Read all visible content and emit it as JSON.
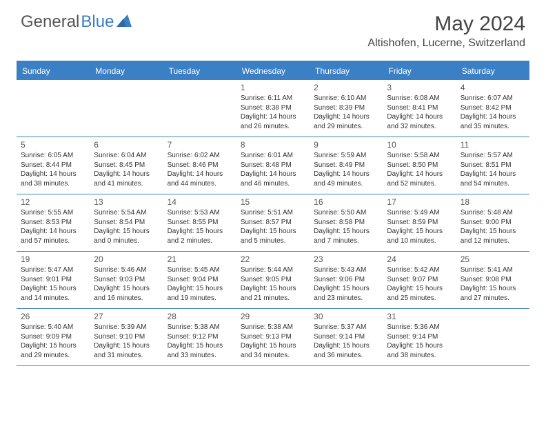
{
  "logo": {
    "part1": "General",
    "part2": "Blue"
  },
  "title": "May 2024",
  "location": "Altishofen, Lucerne, Switzerland",
  "header_bg": "#3b7fc4",
  "day_names": [
    "Sunday",
    "Monday",
    "Tuesday",
    "Wednesday",
    "Thursday",
    "Friday",
    "Saturday"
  ],
  "weeks": [
    [
      null,
      null,
      null,
      {
        "d": "1",
        "sr": "6:11 AM",
        "ss": "8:38 PM",
        "dl": "14 hours and 26 minutes."
      },
      {
        "d": "2",
        "sr": "6:10 AM",
        "ss": "8:39 PM",
        "dl": "14 hours and 29 minutes."
      },
      {
        "d": "3",
        "sr": "6:08 AM",
        "ss": "8:41 PM",
        "dl": "14 hours and 32 minutes."
      },
      {
        "d": "4",
        "sr": "6:07 AM",
        "ss": "8:42 PM",
        "dl": "14 hours and 35 minutes."
      }
    ],
    [
      {
        "d": "5",
        "sr": "6:05 AM",
        "ss": "8:44 PM",
        "dl": "14 hours and 38 minutes."
      },
      {
        "d": "6",
        "sr": "6:04 AM",
        "ss": "8:45 PM",
        "dl": "14 hours and 41 minutes."
      },
      {
        "d": "7",
        "sr": "6:02 AM",
        "ss": "8:46 PM",
        "dl": "14 hours and 44 minutes."
      },
      {
        "d": "8",
        "sr": "6:01 AM",
        "ss": "8:48 PM",
        "dl": "14 hours and 46 minutes."
      },
      {
        "d": "9",
        "sr": "5:59 AM",
        "ss": "8:49 PM",
        "dl": "14 hours and 49 minutes."
      },
      {
        "d": "10",
        "sr": "5:58 AM",
        "ss": "8:50 PM",
        "dl": "14 hours and 52 minutes."
      },
      {
        "d": "11",
        "sr": "5:57 AM",
        "ss": "8:51 PM",
        "dl": "14 hours and 54 minutes."
      }
    ],
    [
      {
        "d": "12",
        "sr": "5:55 AM",
        "ss": "8:53 PM",
        "dl": "14 hours and 57 minutes."
      },
      {
        "d": "13",
        "sr": "5:54 AM",
        "ss": "8:54 PM",
        "dl": "15 hours and 0 minutes."
      },
      {
        "d": "14",
        "sr": "5:53 AM",
        "ss": "8:55 PM",
        "dl": "15 hours and 2 minutes."
      },
      {
        "d": "15",
        "sr": "5:51 AM",
        "ss": "8:57 PM",
        "dl": "15 hours and 5 minutes."
      },
      {
        "d": "16",
        "sr": "5:50 AM",
        "ss": "8:58 PM",
        "dl": "15 hours and 7 minutes."
      },
      {
        "d": "17",
        "sr": "5:49 AM",
        "ss": "8:59 PM",
        "dl": "15 hours and 10 minutes."
      },
      {
        "d": "18",
        "sr": "5:48 AM",
        "ss": "9:00 PM",
        "dl": "15 hours and 12 minutes."
      }
    ],
    [
      {
        "d": "19",
        "sr": "5:47 AM",
        "ss": "9:01 PM",
        "dl": "15 hours and 14 minutes."
      },
      {
        "d": "20",
        "sr": "5:46 AM",
        "ss": "9:03 PM",
        "dl": "15 hours and 16 minutes."
      },
      {
        "d": "21",
        "sr": "5:45 AM",
        "ss": "9:04 PM",
        "dl": "15 hours and 19 minutes."
      },
      {
        "d": "22",
        "sr": "5:44 AM",
        "ss": "9:05 PM",
        "dl": "15 hours and 21 minutes."
      },
      {
        "d": "23",
        "sr": "5:43 AM",
        "ss": "9:06 PM",
        "dl": "15 hours and 23 minutes."
      },
      {
        "d": "24",
        "sr": "5:42 AM",
        "ss": "9:07 PM",
        "dl": "15 hours and 25 minutes."
      },
      {
        "d": "25",
        "sr": "5:41 AM",
        "ss": "9:08 PM",
        "dl": "15 hours and 27 minutes."
      }
    ],
    [
      {
        "d": "26",
        "sr": "5:40 AM",
        "ss": "9:09 PM",
        "dl": "15 hours and 29 minutes."
      },
      {
        "d": "27",
        "sr": "5:39 AM",
        "ss": "9:10 PM",
        "dl": "15 hours and 31 minutes."
      },
      {
        "d": "28",
        "sr": "5:38 AM",
        "ss": "9:12 PM",
        "dl": "15 hours and 33 minutes."
      },
      {
        "d": "29",
        "sr": "5:38 AM",
        "ss": "9:13 PM",
        "dl": "15 hours and 34 minutes."
      },
      {
        "d": "30",
        "sr": "5:37 AM",
        "ss": "9:14 PM",
        "dl": "15 hours and 36 minutes."
      },
      {
        "d": "31",
        "sr": "5:36 AM",
        "ss": "9:14 PM",
        "dl": "15 hours and 38 minutes."
      },
      null
    ]
  ],
  "labels": {
    "sunrise": "Sunrise: ",
    "sunset": "Sunset: ",
    "daylight": "Daylight: "
  },
  "colors": {
    "accent": "#3b7fc4",
    "text": "#333333",
    "muted": "#555555",
    "white": "#ffffff"
  },
  "typography": {
    "title_fontsize": 30,
    "location_fontsize": 16,
    "dayheader_fontsize": 12,
    "daynum_fontsize": 12,
    "info_fontsize": 10
  }
}
